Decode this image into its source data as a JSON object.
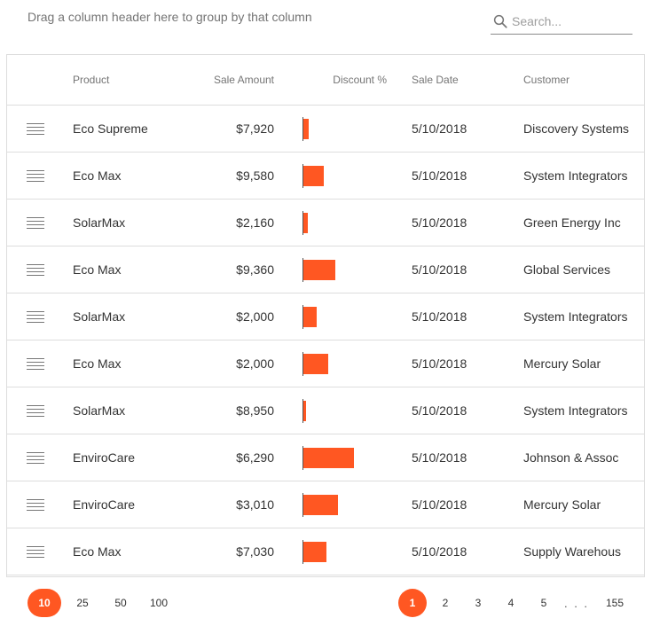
{
  "group_panel": {
    "text": "Drag a column header here to group by that column"
  },
  "search": {
    "placeholder": "Search..."
  },
  "columns": {
    "product": "Product",
    "sale_amount": "Sale Amount",
    "discount": "Discount %",
    "sale_date": "Sale Date",
    "customer": "Customer"
  },
  "rows": [
    {
      "product": "Eco Supreme",
      "amount": "$7,920",
      "discount": 0.06,
      "date": "5/10/2018",
      "customer": "Discovery Systems"
    },
    {
      "product": "Eco Max",
      "amount": "$9,580",
      "discount": 0.23,
      "date": "5/10/2018",
      "customer": "System Integrators"
    },
    {
      "product": "SolarMax",
      "amount": "$2,160",
      "discount": 0.05,
      "date": "5/10/2018",
      "customer": "Green Energy Inc"
    },
    {
      "product": "Eco Max",
      "amount": "$9,360",
      "discount": 0.36,
      "date": "5/10/2018",
      "customer": "Global Services"
    },
    {
      "product": "SolarMax",
      "amount": "$2,000",
      "discount": 0.15,
      "date": "5/10/2018",
      "customer": "System Integrators"
    },
    {
      "product": "Eco Max",
      "amount": "$2,000",
      "discount": 0.28,
      "date": "5/10/2018",
      "customer": "Mercury Solar"
    },
    {
      "product": "SolarMax",
      "amount": "$8,950",
      "discount": 0.02,
      "date": "5/10/2018",
      "customer": "System Integrators"
    },
    {
      "product": "EnviroCare",
      "amount": "$6,290",
      "discount": 0.57,
      "date": "5/10/2018",
      "customer": "Johnson & Assoc"
    },
    {
      "product": "EnviroCare",
      "amount": "$3,010",
      "discount": 0.39,
      "date": "5/10/2018",
      "customer": "Mercury Solar"
    },
    {
      "product": "Eco Max",
      "amount": "$7,030",
      "discount": 0.26,
      "date": "5/10/2018",
      "customer": "Supply Warehous"
    }
  ],
  "pager": {
    "sizes": [
      "10",
      "25",
      "50",
      "100"
    ],
    "selected_size": "10",
    "pages": [
      "1",
      "2",
      "3",
      "4",
      "5"
    ],
    "dots": ". . .",
    "last_page": "155",
    "current_page": "1"
  },
  "colors": {
    "accent": "#ff5722",
    "grid_line": "#dddddd",
    "header_text": "#757575"
  },
  "icons": {
    "search": "search-icon",
    "drag": "drag-handle-icon"
  }
}
